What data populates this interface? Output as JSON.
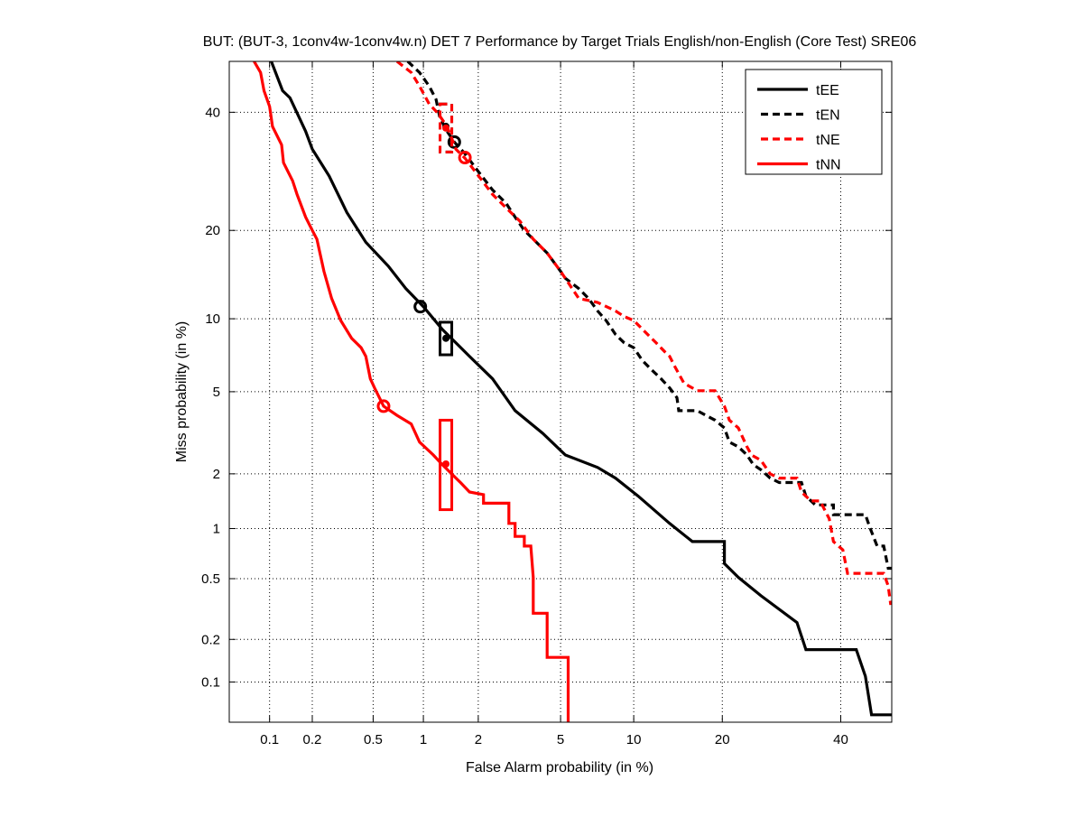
{
  "chart_data": {
    "type": "line",
    "title": "BUT: (BUT-3, 1conv4w-1conv4w.n) DET 7 Performance by Target Trials English/non-English (Core Test) SRE06",
    "xlabel": "False Alarm probability (in %)",
    "ylabel": "Miss probability (in %)",
    "xscale": "probit",
    "yscale": "probit",
    "xlim": [
      0.05,
      50
    ],
    "ylim": [
      0.05,
      50
    ],
    "xticks": [
      0.1,
      0.2,
      0.5,
      1,
      2,
      5,
      10,
      20,
      40
    ],
    "yticks": [
      0.1,
      0.2,
      0.5,
      1,
      2,
      5,
      10,
      20,
      40
    ],
    "xtick_labels": [
      "0.1",
      "0.2",
      "0.5",
      "1",
      "2",
      "5",
      "10",
      "20",
      "40"
    ],
    "ytick_labels": [
      "0.1",
      "0.2",
      "0.5",
      "1",
      "2",
      "5",
      "10",
      "20",
      "40"
    ],
    "grid": true,
    "legend_position": "top-right",
    "series": [
      {
        "name": "tEE",
        "color": "#000000",
        "dash": false,
        "points": [
          [
            0.103,
            50
          ],
          [
            0.124,
            44.2
          ],
          [
            0.14,
            42.8
          ],
          [
            0.18,
            36.4
          ],
          [
            0.2,
            33.1
          ],
          [
            0.26,
            28.4
          ],
          [
            0.34,
            22.6
          ],
          [
            0.45,
            18.4
          ],
          [
            0.62,
            15.4
          ],
          [
            0.79,
            12.9
          ],
          [
            1.0,
            11.1
          ],
          [
            1.28,
            9.1
          ],
          [
            1.8,
            7.1
          ],
          [
            2.37,
            5.7
          ],
          [
            3.07,
            4.1
          ],
          [
            4.15,
            3.2
          ],
          [
            5.25,
            2.5
          ],
          [
            7.2,
            2.16
          ],
          [
            8.5,
            1.9
          ],
          [
            10.4,
            1.52
          ],
          [
            13.5,
            1.07
          ],
          [
            16.1,
            0.84
          ],
          [
            20.3,
            0.84
          ],
          [
            20.3,
            0.62
          ],
          [
            22.3,
            0.51
          ],
          [
            25.8,
            0.39
          ],
          [
            31.9,
            0.26
          ],
          [
            33.5,
            0.17
          ],
          [
            43,
            0.17
          ],
          [
            44.8,
            0.11
          ],
          [
            46,
            0.057
          ],
          [
            50,
            0.057
          ]
        ],
        "min_dcf": [
          0.96,
          11.1
        ],
        "act_dcf": [
          1.34,
          8.4
        ],
        "ci": [
          7.2,
          9.7
        ]
      },
      {
        "name": "tEN",
        "color": "#000000",
        "dash": true,
        "points": [
          [
            0.81,
            50
          ],
          [
            0.95,
            47.8
          ],
          [
            1.08,
            45.1
          ],
          [
            1.18,
            42.5
          ],
          [
            1.24,
            39.0
          ],
          [
            1.36,
            36.4
          ],
          [
            1.49,
            34.4
          ],
          [
            1.7,
            32.3
          ],
          [
            2.01,
            29.1
          ],
          [
            2.37,
            26.1
          ],
          [
            2.77,
            24.0
          ],
          [
            3.07,
            21.9
          ],
          [
            3.4,
            20.0
          ],
          [
            3.75,
            18.8
          ],
          [
            4.35,
            17.0
          ],
          [
            5.0,
            14.8
          ],
          [
            5.25,
            14.0
          ],
          [
            6.0,
            12.9
          ],
          [
            6.6,
            11.9
          ],
          [
            7.2,
            10.7
          ],
          [
            7.8,
            9.85
          ],
          [
            8.5,
            8.7
          ],
          [
            9.2,
            8.05
          ],
          [
            10.0,
            7.7
          ],
          [
            10.8,
            6.8
          ],
          [
            11.7,
            6.2
          ],
          [
            12.6,
            5.7
          ],
          [
            13.5,
            5.2
          ],
          [
            14.3,
            4.7
          ],
          [
            14.5,
            4.1
          ],
          [
            16.7,
            4.1
          ],
          [
            17.8,
            3.9
          ],
          [
            19.0,
            3.7
          ],
          [
            20.3,
            3.4
          ],
          [
            21.0,
            2.9
          ],
          [
            22.3,
            2.75
          ],
          [
            23.6,
            2.5
          ],
          [
            24.6,
            2.23
          ],
          [
            25.8,
            2.1
          ],
          [
            27.3,
            1.9
          ],
          [
            28.8,
            1.8
          ],
          [
            32.7,
            1.8
          ],
          [
            33.5,
            1.52
          ],
          [
            35.2,
            1.36
          ],
          [
            38.6,
            1.36
          ],
          [
            38.6,
            1.2
          ],
          [
            44.8,
            1.2
          ],
          [
            45.7,
            1.01
          ],
          [
            47.1,
            0.79
          ],
          [
            48.4,
            0.79
          ],
          [
            49.3,
            0.58
          ],
          [
            50,
            0.58
          ]
        ],
        "min_dcf": [
          1.49,
          34.4
        ],
        "act_dcf": [
          1.34,
          37.3
        ],
        "ci": [
          32.6,
          41.6
        ]
      },
      {
        "name": "tNE",
        "color": "#ff0000",
        "dash": true,
        "points": [
          [
            0.7,
            50
          ],
          [
            0.85,
            47.8
          ],
          [
            0.95,
            45.1
          ],
          [
            1.08,
            41.6
          ],
          [
            1.21,
            39.8
          ],
          [
            1.36,
            37.3
          ],
          [
            1.52,
            33.1
          ],
          [
            1.7,
            31.5
          ],
          [
            2.01,
            28.4
          ],
          [
            2.37,
            25.4
          ],
          [
            2.77,
            23.3
          ],
          [
            3.24,
            21.3
          ],
          [
            3.75,
            18.8
          ],
          [
            4.35,
            17.0
          ],
          [
            5.0,
            14.8
          ],
          [
            6.0,
            11.9
          ],
          [
            7.2,
            11.5
          ],
          [
            8.5,
            10.7
          ],
          [
            9.2,
            10.2
          ],
          [
            10.0,
            9.85
          ],
          [
            10.8,
            9.1
          ],
          [
            12.1,
            8.05
          ],
          [
            13.0,
            7.4
          ],
          [
            13.5,
            7.1
          ],
          [
            14.0,
            6.5
          ],
          [
            15.1,
            5.45
          ],
          [
            16.7,
            5.05
          ],
          [
            19.0,
            5.05
          ],
          [
            20.3,
            4.3
          ],
          [
            21.0,
            3.7
          ],
          [
            22.3,
            3.4
          ],
          [
            23.6,
            2.75
          ],
          [
            24.3,
            2.5
          ],
          [
            25.8,
            2.35
          ],
          [
            27.3,
            2.0
          ],
          [
            28.8,
            1.9
          ],
          [
            31.9,
            1.9
          ],
          [
            32.7,
            1.6
          ],
          [
            34.4,
            1.43
          ],
          [
            36.1,
            1.43
          ],
          [
            37.8,
            1.14
          ],
          [
            38.6,
            0.84
          ],
          [
            40.4,
            0.75
          ],
          [
            41.3,
            0.54
          ],
          [
            48.4,
            0.54
          ],
          [
            49.3,
            0.45
          ],
          [
            49.8,
            0.34
          ]
        ],
        "min_dcf": [
          1.7,
          31.6
        ],
        "act_dcf": [
          1.34,
          37.0
        ],
        "ci": [
          32.6,
          41.6
        ]
      },
      {
        "name": "tNN",
        "color": "#ff0000",
        "dash": false,
        "points": [
          [
            0.077,
            50
          ],
          [
            0.086,
            47.8
          ],
          [
            0.091,
            44.2
          ],
          [
            0.1,
            41.1
          ],
          [
            0.105,
            37.3
          ],
          [
            0.122,
            33.9
          ],
          [
            0.126,
            30.7
          ],
          [
            0.146,
            27.6
          ],
          [
            0.157,
            25.4
          ],
          [
            0.18,
            21.9
          ],
          [
            0.2,
            20.0
          ],
          [
            0.215,
            18.8
          ],
          [
            0.24,
            14.8
          ],
          [
            0.27,
            11.9
          ],
          [
            0.31,
            9.85
          ],
          [
            0.365,
            8.4
          ],
          [
            0.42,
            7.7
          ],
          [
            0.45,
            7.1
          ],
          [
            0.48,
            5.7
          ],
          [
            0.51,
            5.2
          ],
          [
            0.58,
            4.3
          ],
          [
            0.7,
            3.9
          ],
          [
            0.85,
            3.55
          ],
          [
            0.95,
            2.9
          ],
          [
            1.14,
            2.5
          ],
          [
            1.28,
            2.23
          ],
          [
            1.61,
            1.8
          ],
          [
            1.8,
            1.6
          ],
          [
            2.13,
            1.55
          ],
          [
            2.13,
            1.39
          ],
          [
            2.86,
            1.39
          ],
          [
            2.86,
            1.07
          ],
          [
            3.07,
            1.07
          ],
          [
            3.07,
            0.9
          ],
          [
            3.4,
            0.9
          ],
          [
            3.4,
            0.79
          ],
          [
            3.65,
            0.79
          ],
          [
            3.75,
            0.51
          ],
          [
            3.75,
            0.3
          ],
          [
            4.35,
            0.3
          ],
          [
            4.35,
            0.15
          ],
          [
            5.4,
            0.15
          ],
          [
            5.4,
            0.05
          ]
        ],
        "min_dcf": [
          0.58,
          4.3
        ],
        "act_dcf": [
          1.34,
          2.25
        ],
        "ci": [
          1.28,
          3.7
        ]
      }
    ]
  }
}
